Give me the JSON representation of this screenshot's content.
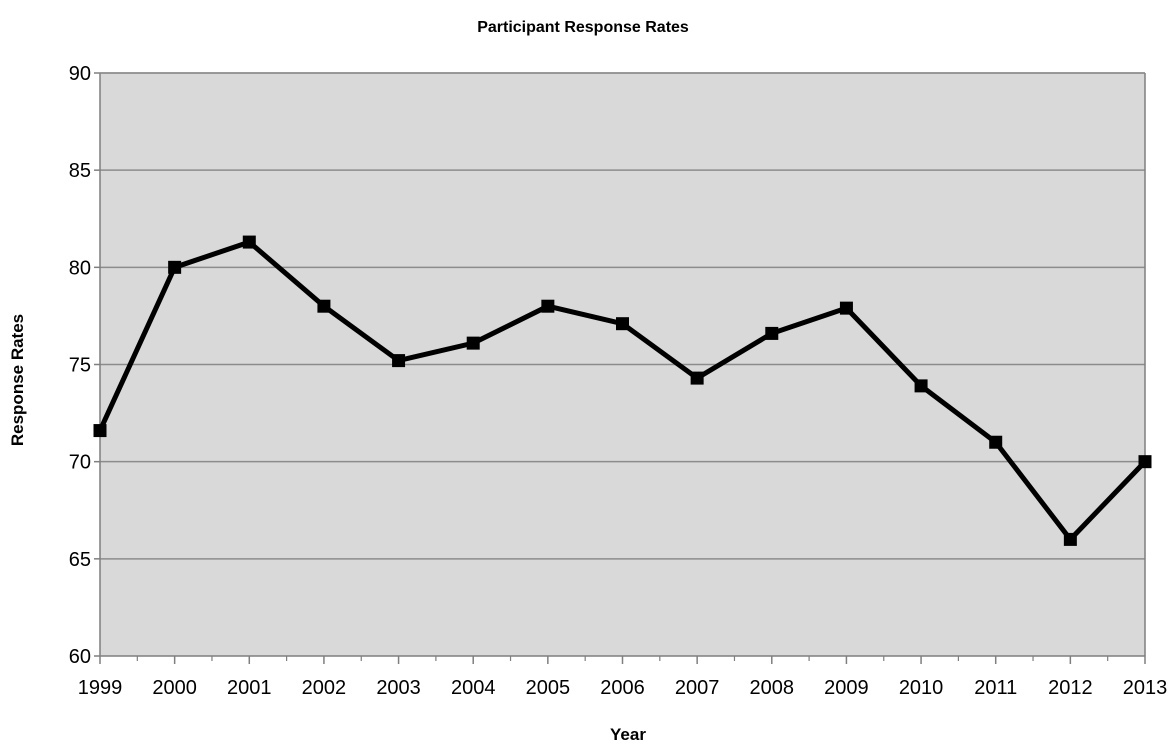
{
  "chart_data": {
    "type": "line",
    "title": "Participant Response Rates",
    "xlabel": "Year",
    "ylabel": "Response Rates",
    "categories": [
      "1999",
      "2000",
      "2001",
      "2002",
      "2003",
      "2004",
      "2005",
      "2006",
      "2007",
      "2008",
      "2009",
      "2010",
      "2011",
      "2012",
      "2013"
    ],
    "series": [
      {
        "values": [
          71.6,
          80.0,
          81.3,
          78.0,
          75.2,
          76.1,
          78.0,
          77.1,
          74.3,
          76.6,
          77.9,
          73.9,
          71.0,
          66.0,
          70.0
        ]
      }
    ],
    "ylim": [
      60,
      90
    ],
    "yticks": [
      60,
      65,
      70,
      75,
      80,
      85,
      90
    ],
    "grid": true,
    "legend": "none",
    "colors": {
      "plot_background": "#d9d9d9",
      "gridline": "#8c8c8c",
      "axis": "#7f7f7f",
      "line": "#000000",
      "marker": "#000000"
    }
  }
}
